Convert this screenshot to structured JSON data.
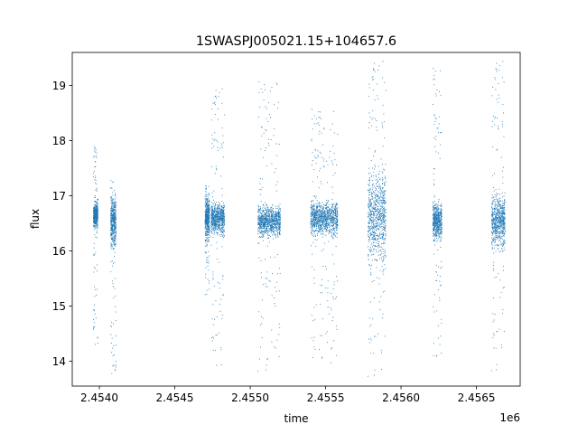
{
  "chart_data": {
    "type": "scatter",
    "title": "1SWASPJ005021.15+104657.6",
    "xlabel": "time",
    "ylabel": "flux",
    "x_offset_label": "1e6",
    "x_tick_labels": [
      "2.4540",
      "2.4545",
      "2.4550",
      "2.4555",
      "2.4560",
      "2.4565"
    ],
    "x_ticks": [
      2454000,
      2454500,
      2455000,
      2455500,
      2456000,
      2456500
    ],
    "y_ticks": [
      14,
      15,
      16,
      17,
      18,
      19
    ],
    "xlim": [
      2453820,
      2456790
    ],
    "ylim": [
      13.55,
      19.6
    ],
    "grid": false,
    "marker_color": "#1f77b4",
    "clusters": [
      {
        "season": 1,
        "t_start": 2453960,
        "t_end": 2453990,
        "flux_median": 16.65,
        "flux_spread": 0.15,
        "flux_min": 14.3,
        "flux_max": 18.0
      },
      {
        "season": 1,
        "t_start": 2454075,
        "t_end": 2454110,
        "flux_median": 16.55,
        "flux_spread": 0.3,
        "flux_min": 13.75,
        "flux_max": 17.3
      },
      {
        "season": 2,
        "t_start": 2454700,
        "t_end": 2454730,
        "flux_median": 16.6,
        "flux_spread": 0.25,
        "flux_min": 15.2,
        "flux_max": 17.2
      },
      {
        "season": 2,
        "t_start": 2454740,
        "t_end": 2454830,
        "flux_median": 16.6,
        "flux_spread": 0.18,
        "flux_min": 13.8,
        "flux_max": 19.0
      },
      {
        "season": 3,
        "t_start": 2455050,
        "t_end": 2455200,
        "flux_median": 16.55,
        "flux_spread": 0.18,
        "flux_min": 13.8,
        "flux_max": 19.1
      },
      {
        "season": 4,
        "t_start": 2455400,
        "t_end": 2455580,
        "flux_median": 16.6,
        "flux_spread": 0.2,
        "flux_min": 13.85,
        "flux_max": 18.6
      },
      {
        "season": 5,
        "t_start": 2455780,
        "t_end": 2455900,
        "flux_median": 16.65,
        "flux_spread": 0.55,
        "flux_min": 13.7,
        "flux_max": 19.5
      },
      {
        "season": 6,
        "t_start": 2456210,
        "t_end": 2456270,
        "flux_median": 16.55,
        "flux_spread": 0.22,
        "flux_min": 13.85,
        "flux_max": 19.35
      },
      {
        "season": 7,
        "t_start": 2456600,
        "t_end": 2456690,
        "flux_median": 16.55,
        "flux_spread": 0.3,
        "flux_min": 13.8,
        "flux_max": 19.5
      }
    ]
  }
}
